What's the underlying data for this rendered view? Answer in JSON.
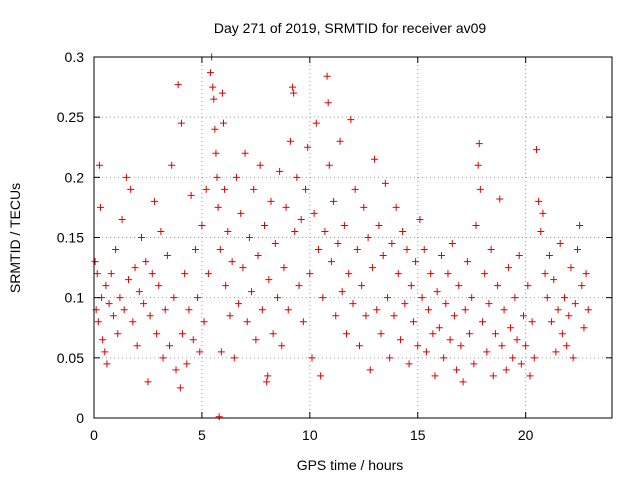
{
  "chart_data": {
    "type": "scatter",
    "title": "Day 271 of 2019, SRMTID for receiver av09",
    "xlabel": "GPS time / hours",
    "ylabel": "SRMTID / TECUs",
    "xlim": [
      0,
      24
    ],
    "ylim": [
      0,
      0.3
    ],
    "xticks": [
      0,
      5,
      10,
      15,
      20
    ],
    "xtick_labels": [
      "0",
      "5",
      "10",
      "15",
      "20"
    ],
    "yticks": [
      0,
      0.05,
      0.1,
      0.15,
      0.2,
      0.25,
      0.3
    ],
    "ytick_labels": [
      "0",
      "0.05",
      "0.1",
      "0.15",
      "0.2",
      "0.25",
      "0.3"
    ],
    "grid": true,
    "marker": "plus",
    "color": "#e00000",
    "series": [
      {
        "name": "SRMTID",
        "points": [
          [
            0.05,
            0.13
          ],
          [
            0.1,
            0.09
          ],
          [
            0.15,
            0.12
          ],
          [
            0.2,
            0.08
          ],
          [
            0.25,
            0.21
          ],
          [
            0.3,
            0.175
          ],
          [
            0.35,
            0.1
          ],
          [
            0.4,
            0.065
          ],
          [
            0.5,
            0.055
          ],
          [
            0.55,
            0.11
          ],
          [
            0.6,
            0.045
          ],
          [
            0.7,
            0.095
          ],
          [
            0.8,
            0.12
          ],
          [
            0.9,
            0.085
          ],
          [
            1.0,
            0.14
          ],
          [
            1.1,
            0.07
          ],
          [
            1.2,
            0.1
          ],
          [
            1.3,
            0.165
          ],
          [
            1.4,
            0.09
          ],
          [
            1.5,
            0.2
          ],
          [
            1.6,
            0.115
          ],
          [
            1.7,
            0.19
          ],
          [
            1.8,
            0.08
          ],
          [
            1.9,
            0.125
          ],
          [
            2.0,
            0.06
          ],
          [
            2.1,
            0.105
          ],
          [
            2.2,
            0.15
          ],
          [
            2.3,
            0.095
          ],
          [
            2.4,
            0.13
          ],
          [
            2.5,
            0.03
          ],
          [
            2.6,
            0.085
          ],
          [
            2.7,
            0.12
          ],
          [
            2.8,
            0.18
          ],
          [
            2.9,
            0.07
          ],
          [
            3.0,
            0.11
          ],
          [
            3.1,
            0.155
          ],
          [
            3.2,
            0.05
          ],
          [
            3.3,
            0.09
          ],
          [
            3.4,
            0.135
          ],
          [
            3.5,
            0.06
          ],
          [
            3.6,
            0.21
          ],
          [
            3.7,
            0.1
          ],
          [
            3.8,
            0.04
          ],
          [
            3.9,
            0.277
          ],
          [
            4.0,
            0.025
          ],
          [
            4.05,
            0.245
          ],
          [
            4.1,
            0.07
          ],
          [
            4.2,
            0.12
          ],
          [
            4.3,
            0.045
          ],
          [
            4.4,
            0.09
          ],
          [
            4.5,
            0.185
          ],
          [
            4.6,
            0.065
          ],
          [
            4.7,
            0.14
          ],
          [
            4.8,
            0.1
          ],
          [
            4.9,
            0.055
          ],
          [
            5.0,
            0.16
          ],
          [
            5.1,
            0.08
          ],
          [
            5.2,
            0.19
          ],
          [
            5.3,
            0.12
          ],
          [
            5.4,
            0.287
          ],
          [
            5.45,
            0.3
          ],
          [
            5.5,
            0.275
          ],
          [
            5.55,
            0.265
          ],
          [
            5.6,
            0.24
          ],
          [
            5.65,
            0.22
          ],
          [
            5.7,
            0.2
          ],
          [
            5.75,
            0.175
          ],
          [
            5.8,
            0.001
          ],
          [
            5.85,
            0.14
          ],
          [
            5.9,
            0.055
          ],
          [
            5.95,
            0.27
          ],
          [
            6.0,
            0.245
          ],
          [
            6.05,
            0.19
          ],
          [
            6.1,
            0.11
          ],
          [
            6.2,
            0.155
          ],
          [
            6.3,
            0.085
          ],
          [
            6.4,
            0.13
          ],
          [
            6.5,
            0.05
          ],
          [
            6.6,
            0.2
          ],
          [
            6.7,
            0.095
          ],
          [
            6.8,
            0.17
          ],
          [
            6.9,
            0.125
          ],
          [
            7.0,
            0.22
          ],
          [
            7.1,
            0.08
          ],
          [
            7.2,
            0.15
          ],
          [
            7.3,
            0.105
          ],
          [
            7.4,
            0.19
          ],
          [
            7.5,
            0.065
          ],
          [
            7.6,
            0.135
          ],
          [
            7.7,
            0.21
          ],
          [
            7.8,
            0.09
          ],
          [
            7.9,
            0.16
          ],
          [
            8.0,
            0.03
          ],
          [
            8.05,
            0.035
          ],
          [
            8.1,
            0.115
          ],
          [
            8.2,
            0.18
          ],
          [
            8.3,
            0.07
          ],
          [
            8.4,
            0.145
          ],
          [
            8.5,
            0.1
          ],
          [
            8.6,
            0.205
          ],
          [
            8.7,
            0.06
          ],
          [
            8.8,
            0.125
          ],
          [
            8.9,
            0.175
          ],
          [
            9.0,
            0.09
          ],
          [
            9.1,
            0.23
          ],
          [
            9.2,
            0.275
          ],
          [
            9.25,
            0.27
          ],
          [
            9.3,
            0.155
          ],
          [
            9.4,
            0.2
          ],
          [
            9.5,
            0.11
          ],
          [
            9.6,
            0.165
          ],
          [
            9.7,
            0.08
          ],
          [
            9.8,
            0.19
          ],
          [
            9.9,
            0.225
          ],
          [
            10.0,
            0.12
          ],
          [
            10.1,
            0.05
          ],
          [
            10.2,
            0.17
          ],
          [
            10.3,
            0.245
          ],
          [
            10.4,
            0.14
          ],
          [
            10.5,
            0.035
          ],
          [
            10.6,
            0.1
          ],
          [
            10.7,
            0.155
          ],
          [
            10.8,
            0.284
          ],
          [
            10.85,
            0.262
          ],
          [
            10.9,
            0.21
          ],
          [
            11.0,
            0.13
          ],
          [
            11.1,
            0.18
          ],
          [
            11.2,
            0.085
          ],
          [
            11.3,
            0.145
          ],
          [
            11.4,
            0.23
          ],
          [
            11.5,
            0.105
          ],
          [
            11.6,
            0.16
          ],
          [
            11.7,
            0.07
          ],
          [
            11.8,
            0.12
          ],
          [
            11.9,
            0.248
          ],
          [
            12.0,
            0.095
          ],
          [
            12.1,
            0.19
          ],
          [
            12.2,
            0.14
          ],
          [
            12.3,
            0.06
          ],
          [
            12.4,
            0.11
          ],
          [
            12.5,
            0.175
          ],
          [
            12.6,
            0.085
          ],
          [
            12.7,
            0.15
          ],
          [
            12.8,
            0.04
          ],
          [
            12.9,
            0.125
          ],
          [
            13.0,
            0.215
          ],
          [
            13.1,
            0.09
          ],
          [
            13.2,
            0.16
          ],
          [
            13.3,
            0.07
          ],
          [
            13.4,
            0.135
          ],
          [
            13.5,
            0.195
          ],
          [
            13.6,
            0.1
          ],
          [
            13.7,
            0.05
          ],
          [
            13.8,
            0.145
          ],
          [
            13.9,
            0.085
          ],
          [
            14.0,
            0.175
          ],
          [
            14.1,
            0.12
          ],
          [
            14.2,
            0.065
          ],
          [
            14.3,
            0.155
          ],
          [
            14.4,
            0.095
          ],
          [
            14.5,
            0.14
          ],
          [
            14.6,
            0.045
          ],
          [
            14.7,
            0.11
          ],
          [
            14.8,
            0.08
          ],
          [
            14.9,
            0.13
          ],
          [
            15.0,
            0.06
          ],
          [
            15.1,
            0.165
          ],
          [
            15.2,
            0.1
          ],
          [
            15.3,
            0.14
          ],
          [
            15.4,
            0.055
          ],
          [
            15.5,
            0.09
          ],
          [
            15.6,
            0.12
          ],
          [
            15.7,
            0.07
          ],
          [
            15.8,
            0.035
          ],
          [
            15.9,
            0.105
          ],
          [
            16.0,
            0.075
          ],
          [
            16.1,
            0.135
          ],
          [
            16.2,
            0.05
          ],
          [
            16.3,
            0.095
          ],
          [
            16.4,
            0.12
          ],
          [
            16.5,
            0.065
          ],
          [
            16.6,
            0.145
          ],
          [
            16.7,
            0.085
          ],
          [
            16.8,
            0.04
          ],
          [
            16.9,
            0.11
          ],
          [
            17.0,
            0.06
          ],
          [
            17.1,
            0.03
          ],
          [
            17.2,
            0.09
          ],
          [
            17.3,
            0.13
          ],
          [
            17.4,
            0.07
          ],
          [
            17.5,
            0.1
          ],
          [
            17.6,
            0.045
          ],
          [
            17.7,
            0.16
          ],
          [
            17.8,
            0.21
          ],
          [
            17.85,
            0.228
          ],
          [
            17.9,
            0.19
          ],
          [
            18.0,
            0.08
          ],
          [
            18.1,
            0.12
          ],
          [
            18.2,
            0.055
          ],
          [
            18.3,
            0.095
          ],
          [
            18.4,
            0.14
          ],
          [
            18.5,
            0.035
          ],
          [
            18.6,
            0.07
          ],
          [
            18.7,
            0.11
          ],
          [
            18.8,
            0.182
          ],
          [
            18.9,
            0.06
          ],
          [
            19.0,
            0.09
          ],
          [
            19.1,
            0.04
          ],
          [
            19.2,
            0.125
          ],
          [
            19.3,
            0.075
          ],
          [
            19.4,
            0.05
          ],
          [
            19.5,
            0.1
          ],
          [
            19.6,
            0.065
          ],
          [
            19.7,
            0.135
          ],
          [
            19.8,
            0.045
          ],
          [
            19.9,
            0.085
          ],
          [
            20.0,
            0.06
          ],
          [
            20.1,
            0.11
          ],
          [
            20.2,
            0.035
          ],
          [
            20.3,
            0.08
          ],
          [
            20.4,
            0.05
          ],
          [
            20.5,
            0.223
          ],
          [
            20.6,
            0.18
          ],
          [
            20.7,
            0.155
          ],
          [
            20.8,
            0.17
          ],
          [
            20.9,
            0.12
          ],
          [
            21.0,
            0.1
          ],
          [
            21.1,
            0.135
          ],
          [
            21.2,
            0.08
          ],
          [
            21.3,
            0.115
          ],
          [
            21.4,
            0.055
          ],
          [
            21.5,
            0.09
          ],
          [
            21.6,
            0.145
          ],
          [
            21.7,
            0.07
          ],
          [
            21.8,
            0.1
          ],
          [
            21.9,
            0.06
          ],
          [
            22.0,
            0.085
          ],
          [
            22.1,
            0.125
          ],
          [
            22.2,
            0.05
          ],
          [
            22.3,
            0.095
          ],
          [
            22.4,
            0.14
          ],
          [
            22.5,
            0.16
          ],
          [
            22.6,
            0.11
          ],
          [
            22.7,
            0.075
          ],
          [
            22.8,
            0.12
          ],
          [
            22.9,
            0.09
          ]
        ]
      }
    ]
  }
}
